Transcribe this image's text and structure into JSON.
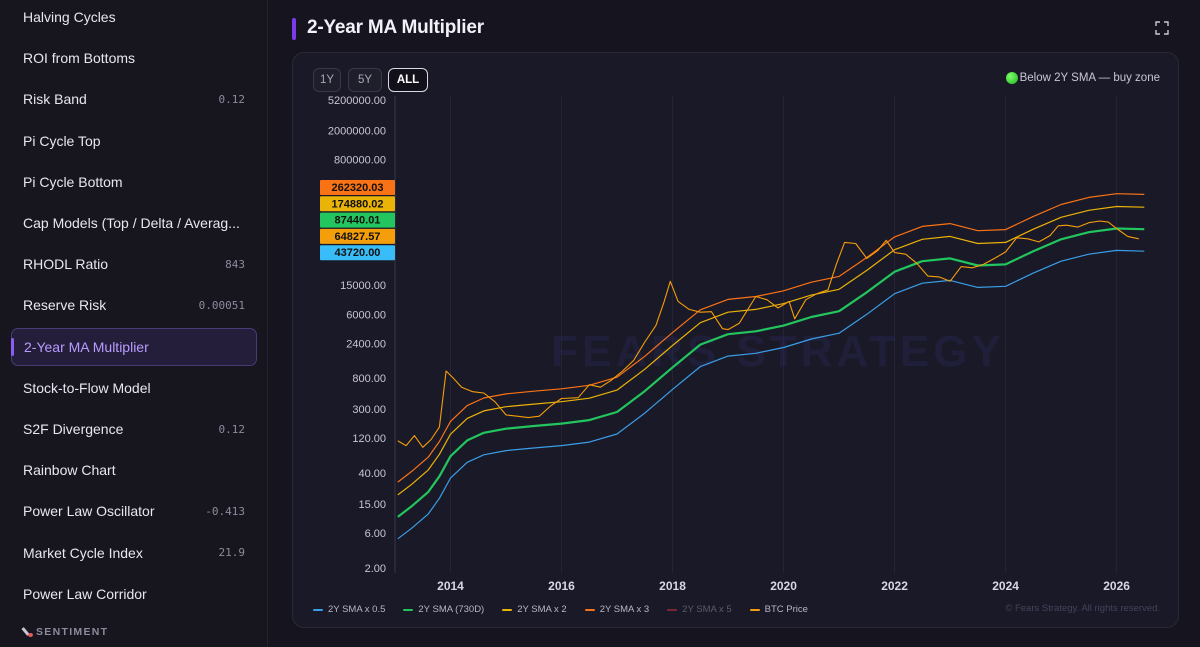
{
  "sidebar": {
    "items": [
      {
        "label": "Halving Cycles",
        "value": ""
      },
      {
        "label": "ROI from Bottoms",
        "value": ""
      },
      {
        "label": "Risk Band",
        "value": "0.12"
      },
      {
        "label": "Pi Cycle Top",
        "value": ""
      },
      {
        "label": "Pi Cycle Bottom",
        "value": ""
      },
      {
        "label": "Cap Models (Top / Delta / Averag...",
        "value": ""
      },
      {
        "label": "RHODL Ratio",
        "value": "843"
      },
      {
        "label": "Reserve Risk",
        "value": "0.00051"
      },
      {
        "label": "2-Year MA Multiplier",
        "value": "",
        "active": true
      },
      {
        "label": "Stock-to-Flow Model",
        "value": ""
      },
      {
        "label": "S2F Divergence",
        "value": "0.12"
      },
      {
        "label": "Rainbow Chart",
        "value": ""
      },
      {
        "label": "Power Law Oscillator",
        "value": "-0.413"
      },
      {
        "label": "Market Cycle Index",
        "value": "21.9"
      },
      {
        "label": "Power Law Corridor",
        "value": ""
      }
    ],
    "section_label": "SENTIMENT"
  },
  "header": {
    "title": "2-Year MA Multiplier",
    "expand_icon": "expand-icon"
  },
  "toolbar": {
    "ranges": [
      "1Y",
      "5Y",
      "ALL"
    ],
    "active_range": "ALL",
    "buy_zone_text": "Below 2Y SMA — buy zone",
    "buy_zone_icon": "green-circle-icon"
  },
  "watermark": "FEARS STRATEGY",
  "copyright": "© Fears Strategy. All rights reserved.",
  "colors": {
    "sma_half": "#3a9ee8",
    "sma": "#22c55e",
    "sma_x2": "#eab308",
    "sma_x3": "#f97316",
    "sma_x5": "#7a2832",
    "btc_price": "#f59e0b",
    "accent": "#8b5cf6"
  },
  "chart_data": {
    "type": "line",
    "title": "2-Year MA Multiplier",
    "y_scale": "log",
    "y_ticks": [
      "5200000.00",
      "2000000.00",
      "800000.00",
      "15000.00",
      "6000.00",
      "2400.00",
      "800.00",
      "300.00",
      "120.00",
      "40.00",
      "15.00",
      "6.00",
      "2.00"
    ],
    "y_tick_values": [
      5200000,
      2000000,
      800000,
      15000,
      6000,
      2400,
      800,
      300,
      120,
      40,
      15,
      6,
      2
    ],
    "x_ticks": [
      "2014",
      "2016",
      "2018",
      "2020",
      "2022",
      "2024",
      "2026"
    ],
    "x_tick_values": [
      2014,
      2016,
      2018,
      2020,
      2022,
      2024,
      2026
    ],
    "xlim": [
      2013.0,
      2026.8
    ],
    "ylim": [
      1.7,
      5200000
    ],
    "latest_values": [
      {
        "series": "2Y SMA x 3",
        "label": "262320.03",
        "value": 262320.03,
        "color": "#f97316"
      },
      {
        "series": "2Y SMA x 2",
        "label": "174880.02",
        "value": 174880.02,
        "color": "#eab308"
      },
      {
        "series": "2Y SMA (730D)",
        "label": "87440.01",
        "value": 87440.01,
        "color": "#22c55e"
      },
      {
        "series": "BTC Price",
        "label": "64827.57",
        "value": 64827.57,
        "color": "#f59e0b"
      },
      {
        "series": "2Y SMA x 0.5",
        "label": "43720.00",
        "value": 43720.0,
        "color": "#38bdf8"
      }
    ],
    "legend_position": "bottom-left",
    "series": [
      {
        "name": "2Y SMA x 0.5",
        "color": "#3a9ee8",
        "x": [
          2013.05,
          2013.3,
          2013.6,
          2013.8,
          2014.0,
          2014.3,
          2014.6,
          2015.0,
          2015.5,
          2016.0,
          2016.5,
          2017.0,
          2017.5,
          2018.0,
          2018.5,
          2019.0,
          2019.5,
          2020.0,
          2020.5,
          2021.0,
          2021.5,
          2022.0,
          2022.5,
          2023.0,
          2023.5,
          2024.0,
          2024.5,
          2025.0,
          2025.5,
          2026.0,
          2026.5
        ],
        "y": [
          5,
          7,
          11,
          18,
          34,
          56,
          71,
          81,
          88,
          95,
          106,
          137,
          265,
          560,
          1150,
          1600,
          1750,
          2100,
          2750,
          3300,
          6000,
          11500,
          16000,
          17500,
          14000,
          14500,
          22000,
          32000,
          40000,
          45000,
          44000
        ]
      },
      {
        "name": "2Y SMA (730D)",
        "color": "#22c55e",
        "x": [
          2013.05,
          2013.3,
          2013.6,
          2013.8,
          2014.0,
          2014.3,
          2014.6,
          2015.0,
          2015.5,
          2016.0,
          2016.5,
          2017.0,
          2017.5,
          2018.0,
          2018.5,
          2019.0,
          2019.5,
          2020.0,
          2020.5,
          2021.0,
          2021.5,
          2022.0,
          2022.5,
          2023.0,
          2023.5,
          2024.0,
          2024.5,
          2025.0,
          2025.5,
          2026.0,
          2026.5
        ],
        "y": [
          10,
          14,
          22,
          36,
          68,
          112,
          142,
          162,
          176,
          190,
          212,
          274,
          530,
          1120,
          2300,
          3200,
          3500,
          4200,
          5500,
          6600,
          12000,
          23000,
          32000,
          35000,
          28000,
          29000,
          44000,
          64000,
          80000,
          90000,
          88000
        ]
      },
      {
        "name": "2Y SMA x 2",
        "color": "#eab308",
        "x": [
          2013.05,
          2013.3,
          2013.6,
          2013.8,
          2014.0,
          2014.3,
          2014.6,
          2015.0,
          2015.5,
          2016.0,
          2016.5,
          2017.0,
          2017.5,
          2018.0,
          2018.5,
          2019.0,
          2019.5,
          2020.0,
          2020.5,
          2021.0,
          2021.5,
          2022.0,
          2022.5,
          2023.0,
          2023.5,
          2024.0,
          2024.5,
          2025.0,
          2025.5,
          2026.0,
          2026.5
        ],
        "y": [
          20,
          28,
          44,
          72,
          136,
          224,
          284,
          324,
          352,
          380,
          424,
          548,
          1060,
          2240,
          4600,
          6400,
          7000,
          8400,
          11000,
          13200,
          24000,
          46000,
          64000,
          70000,
          56000,
          58000,
          88000,
          128000,
          160000,
          180000,
          176000
        ]
      },
      {
        "name": "2Y SMA x 3",
        "color": "#f97316",
        "x": [
          2013.05,
          2013.3,
          2013.6,
          2013.8,
          2014.0,
          2014.3,
          2014.6,
          2015.0,
          2015.5,
          2016.0,
          2016.5,
          2017.0,
          2017.5,
          2018.0,
          2018.5,
          2019.0,
          2019.5,
          2020.0,
          2020.5,
          2021.0,
          2021.5,
          2022.0,
          2022.5,
          2023.0,
          2023.5,
          2024.0,
          2024.5,
          2025.0,
          2025.5,
          2026.0,
          2026.5
        ],
        "y": [
          30,
          42,
          66,
          108,
          204,
          336,
          426,
          486,
          528,
          570,
          636,
          822,
          1590,
          3360,
          6900,
          9600,
          10500,
          12600,
          16500,
          19800,
          36000,
          69000,
          96000,
          105000,
          84000,
          87000,
          132000,
          192000,
          240000,
          270000,
          264000
        ]
      },
      {
        "name": "2Y SMA x 5",
        "color": "#7a2832",
        "x": [],
        "y": []
      },
      {
        "name": "BTC Price",
        "color": "#f59e0b",
        "x": [
          2013.05,
          2013.2,
          2013.35,
          2013.5,
          2013.65,
          2013.8,
          2013.92,
          2014.05,
          2014.2,
          2014.4,
          2014.6,
          2014.8,
          2015.0,
          2015.2,
          2015.4,
          2015.6,
          2015.8,
          2016.0,
          2016.3,
          2016.5,
          2016.7,
          2016.9,
          2017.1,
          2017.3,
          2017.5,
          2017.7,
          2017.85,
          2017.96,
          2018.1,
          2018.3,
          2018.5,
          2018.7,
          2018.9,
          2019.0,
          2019.2,
          2019.5,
          2019.7,
          2019.9,
          2020.1,
          2020.2,
          2020.4,
          2020.6,
          2020.8,
          2020.95,
          2021.1,
          2021.3,
          2021.5,
          2021.7,
          2021.85,
          2022.0,
          2022.2,
          2022.4,
          2022.6,
          2022.8,
          2023.0,
          2023.2,
          2023.4,
          2023.6,
          2023.8,
          2024.0,
          2024.2,
          2024.4,
          2024.6,
          2024.8,
          2024.95,
          2025.1,
          2025.3,
          2025.5,
          2025.7,
          2025.85,
          2026.0,
          2026.2,
          2026.4
        ],
        "y": [
          110,
          95,
          130,
          90,
          115,
          170,
          1000,
          800,
          600,
          520,
          500,
          380,
          250,
          240,
          230,
          240,
          330,
          420,
          430,
          650,
          600,
          750,
          1000,
          1400,
          2500,
          4200,
          9000,
          17000,
          9000,
          7000,
          6400,
          6500,
          3800,
          3700,
          4500,
          10500,
          9500,
          7300,
          9000,
          5200,
          9500,
          11500,
          13000,
          29000,
          58000,
          56000,
          35000,
          45000,
          62000,
          42000,
          40000,
          30000,
          20000,
          19500,
          17000,
          27000,
          26000,
          29000,
          35000,
          43000,
          67000,
          65000,
          59000,
          72000,
          98000,
          100000,
          94000,
          108000,
          114000,
          110000,
          90000,
          70000,
          65000
        ]
      }
    ]
  }
}
